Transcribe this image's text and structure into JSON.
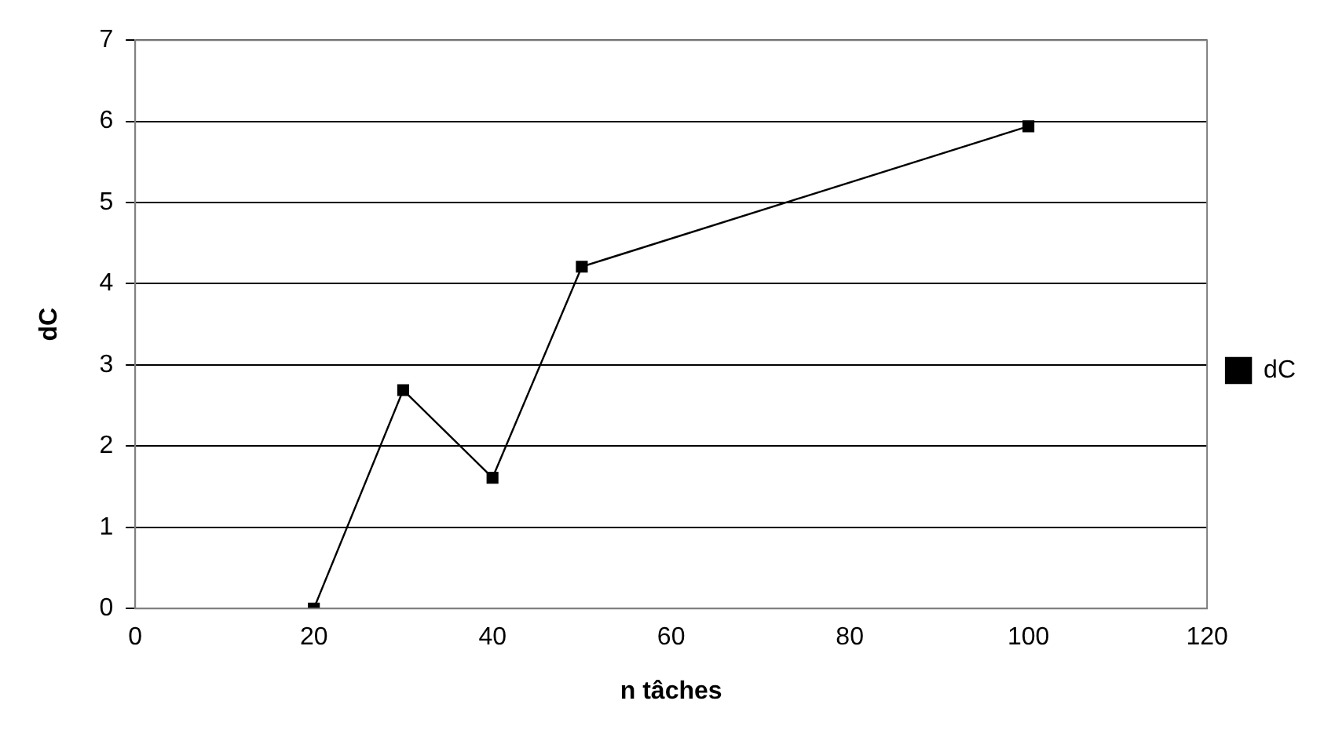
{
  "chart_data": {
    "type": "line",
    "xlabel": "n tâches",
    "ylabel": "dC",
    "x": [
      20,
      30,
      40,
      50,
      100
    ],
    "series": [
      {
        "name": "dC",
        "color": "#000000",
        "values": [
          0,
          2.69,
          1.61,
          4.21,
          5.94
        ]
      }
    ],
    "xlim": [
      0,
      120
    ],
    "xticks": [
      0,
      20,
      40,
      60,
      80,
      100,
      120
    ],
    "ylim": [
      0,
      7
    ],
    "yticks": [
      0,
      1,
      2,
      3,
      4,
      5,
      6,
      7
    ],
    "grid": "y",
    "legend": "right",
    "marker": "square",
    "line_style": "solid"
  }
}
